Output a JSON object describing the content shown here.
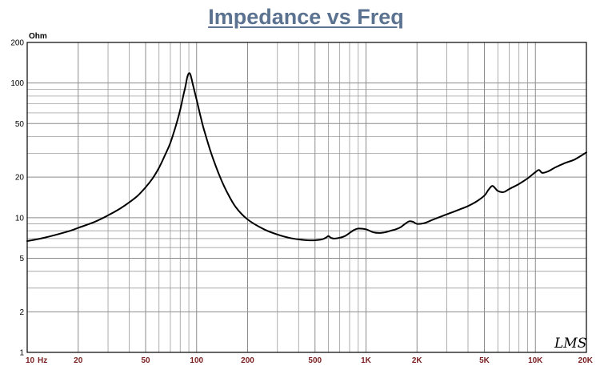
{
  "chart_data": {
    "type": "line",
    "title": "Impedance vs Freq",
    "ylabel": "Ohm",
    "xlabel": "",
    "x_scale": "log",
    "y_scale": "log",
    "xlim": [
      10,
      20000
    ],
    "ylim": [
      1,
      200
    ],
    "x_unit_label": "Hz",
    "x_ticks": [
      10,
      20,
      50,
      100,
      200,
      500,
      1000,
      2000,
      5000,
      10000,
      20000
    ],
    "x_tick_labels": [
      "10",
      "20",
      "50",
      "100",
      "200",
      "500",
      "1K",
      "2K",
      "5K",
      "10K",
      "20K"
    ],
    "y_ticks": [
      1,
      2,
      5,
      10,
      20,
      50,
      100,
      200
    ],
    "y_tick_labels": [
      "1",
      "2",
      "5",
      "10",
      "20",
      "50",
      "100",
      "200"
    ],
    "grid": true,
    "watermark": "LMS",
    "colors": {
      "line": "#000000",
      "grid": "#8c8c8c",
      "frame": "#000000",
      "title": "#5b7290",
      "x_tick_labels": "#7a1f1f"
    },
    "series": [
      {
        "x": [
          10,
          12,
          15,
          18,
          20,
          25,
          30,
          35,
          40,
          45,
          50,
          55,
          60,
          65,
          70,
          75,
          80,
          83,
          86,
          88,
          90,
          92,
          95,
          100,
          105,
          110,
          120,
          130,
          140,
          150,
          170,
          200,
          250,
          300,
          350,
          400,
          450,
          500,
          550,
          580,
          600,
          620,
          650,
          700,
          750,
          800,
          850,
          900,
          1000,
          1100,
          1200,
          1300,
          1400,
          1500,
          1600,
          1700,
          1800,
          1900,
          2000,
          2200,
          2500,
          3000,
          3500,
          4000,
          4500,
          5000,
          5300,
          5600,
          6000,
          6500,
          7000,
          8000,
          9000,
          10000,
          10500,
          11000,
          12000,
          13000,
          15000,
          17000,
          20000
        ],
        "y": [
          6.7,
          7.0,
          7.5,
          8.0,
          8.4,
          9.3,
          10.4,
          11.6,
          13.0,
          14.6,
          16.8,
          19.6,
          23.5,
          29,
          36,
          47,
          63,
          78,
          95,
          110,
          118,
          115,
          98,
          75,
          58,
          46,
          32,
          24,
          19,
          15.8,
          12.0,
          9.7,
          8.2,
          7.5,
          7.1,
          6.9,
          6.8,
          6.8,
          6.9,
          7.1,
          7.3,
          7.1,
          7.0,
          7.1,
          7.3,
          7.7,
          8.1,
          8.3,
          8.2,
          7.8,
          7.7,
          7.8,
          8.0,
          8.2,
          8.5,
          9.0,
          9.4,
          9.3,
          9.0,
          9.1,
          9.7,
          10.6,
          11.4,
          12.2,
          13.2,
          14.6,
          16.2,
          17.2,
          15.8,
          15.5,
          16.3,
          17.8,
          19.6,
          21.8,
          22.6,
          21.5,
          22.2,
          23.5,
          25.5,
          27.0,
          30.5
        ]
      }
    ]
  }
}
